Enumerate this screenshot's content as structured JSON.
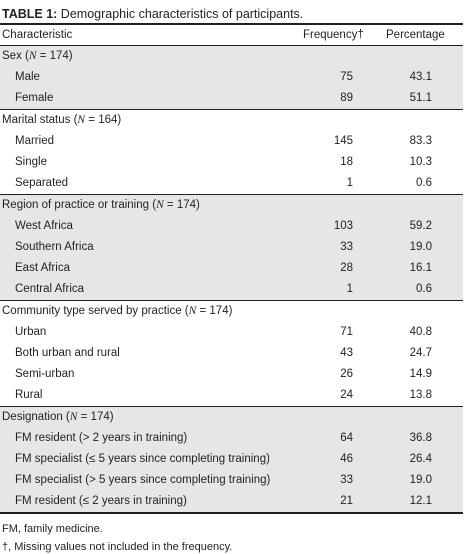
{
  "caption": {
    "label": "TABLE 1:",
    "text": " Demographic characteristics of participants."
  },
  "header": {
    "characteristic": "Characteristic",
    "frequency": "Frequency†",
    "percentage": "Percentage"
  },
  "groups": [
    {
      "title_pre": "Sex (",
      "title_n": "N",
      "title_post": " = 174)",
      "shaded": true,
      "rows": [
        {
          "label": "Male",
          "frequency": "75",
          "percentage": "43.1"
        },
        {
          "label": "Female",
          "frequency": "89",
          "percentage": "51.1"
        }
      ]
    },
    {
      "title_pre": "Marital status (",
      "title_n": "N",
      "title_post": " = 164)",
      "shaded": false,
      "rows": [
        {
          "label": "Married",
          "frequency": "145",
          "percentage": "83.3"
        },
        {
          "label": "Single",
          "frequency": "18",
          "percentage": "10.3"
        },
        {
          "label": "Separated",
          "frequency": "1",
          "percentage": "0.6"
        }
      ]
    },
    {
      "title_pre": "Region of practice or training (",
      "title_n": "N",
      "title_post": " = 174)",
      "shaded": true,
      "rows": [
        {
          "label": "West Africa",
          "frequency": "103",
          "percentage": "59.2"
        },
        {
          "label": "Southern Africa",
          "frequency": "33",
          "percentage": "19.0"
        },
        {
          "label": "East Africa",
          "frequency": "28",
          "percentage": "16.1"
        },
        {
          "label": "Central Africa",
          "frequency": "1",
          "percentage": "0.6"
        }
      ]
    },
    {
      "title_pre": "Community type served by practice (",
      "title_n": "N",
      "title_post": " = 174)",
      "shaded": false,
      "rows": [
        {
          "label": "Urban",
          "frequency": "71",
          "percentage": "40.8"
        },
        {
          "label": "Both urban and rural",
          "frequency": "43",
          "percentage": "24.7"
        },
        {
          "label": "Semi-urban",
          "frequency": "26",
          "percentage": "14.9"
        },
        {
          "label": "Rural",
          "frequency": "24",
          "percentage": "13.8"
        }
      ]
    },
    {
      "title_pre": "Designation (",
      "title_n": "N",
      "title_post": " = 174)",
      "shaded": true,
      "rows": [
        {
          "label": "FM resident (> 2 years in training)",
          "frequency": "64",
          "percentage": "36.8"
        },
        {
          "label": "FM specialist (≤ 5 years since completing training)",
          "frequency": "46",
          "percentage": "26.4"
        },
        {
          "label": "FM specialist (> 5 years since completing training)",
          "frequency": "33",
          "percentage": "19.0"
        },
        {
          "label": "FM resident (≤ 2 years in training)",
          "frequency": "21",
          "percentage": "12.1"
        }
      ]
    }
  ],
  "footnotes": {
    "abbrev": "FM, family medicine.",
    "dagger": "†, Missing values not included in the frequency."
  },
  "colors": {
    "band": "#e6e6e7",
    "text": "#231f20",
    "rule": "#231f20"
  }
}
